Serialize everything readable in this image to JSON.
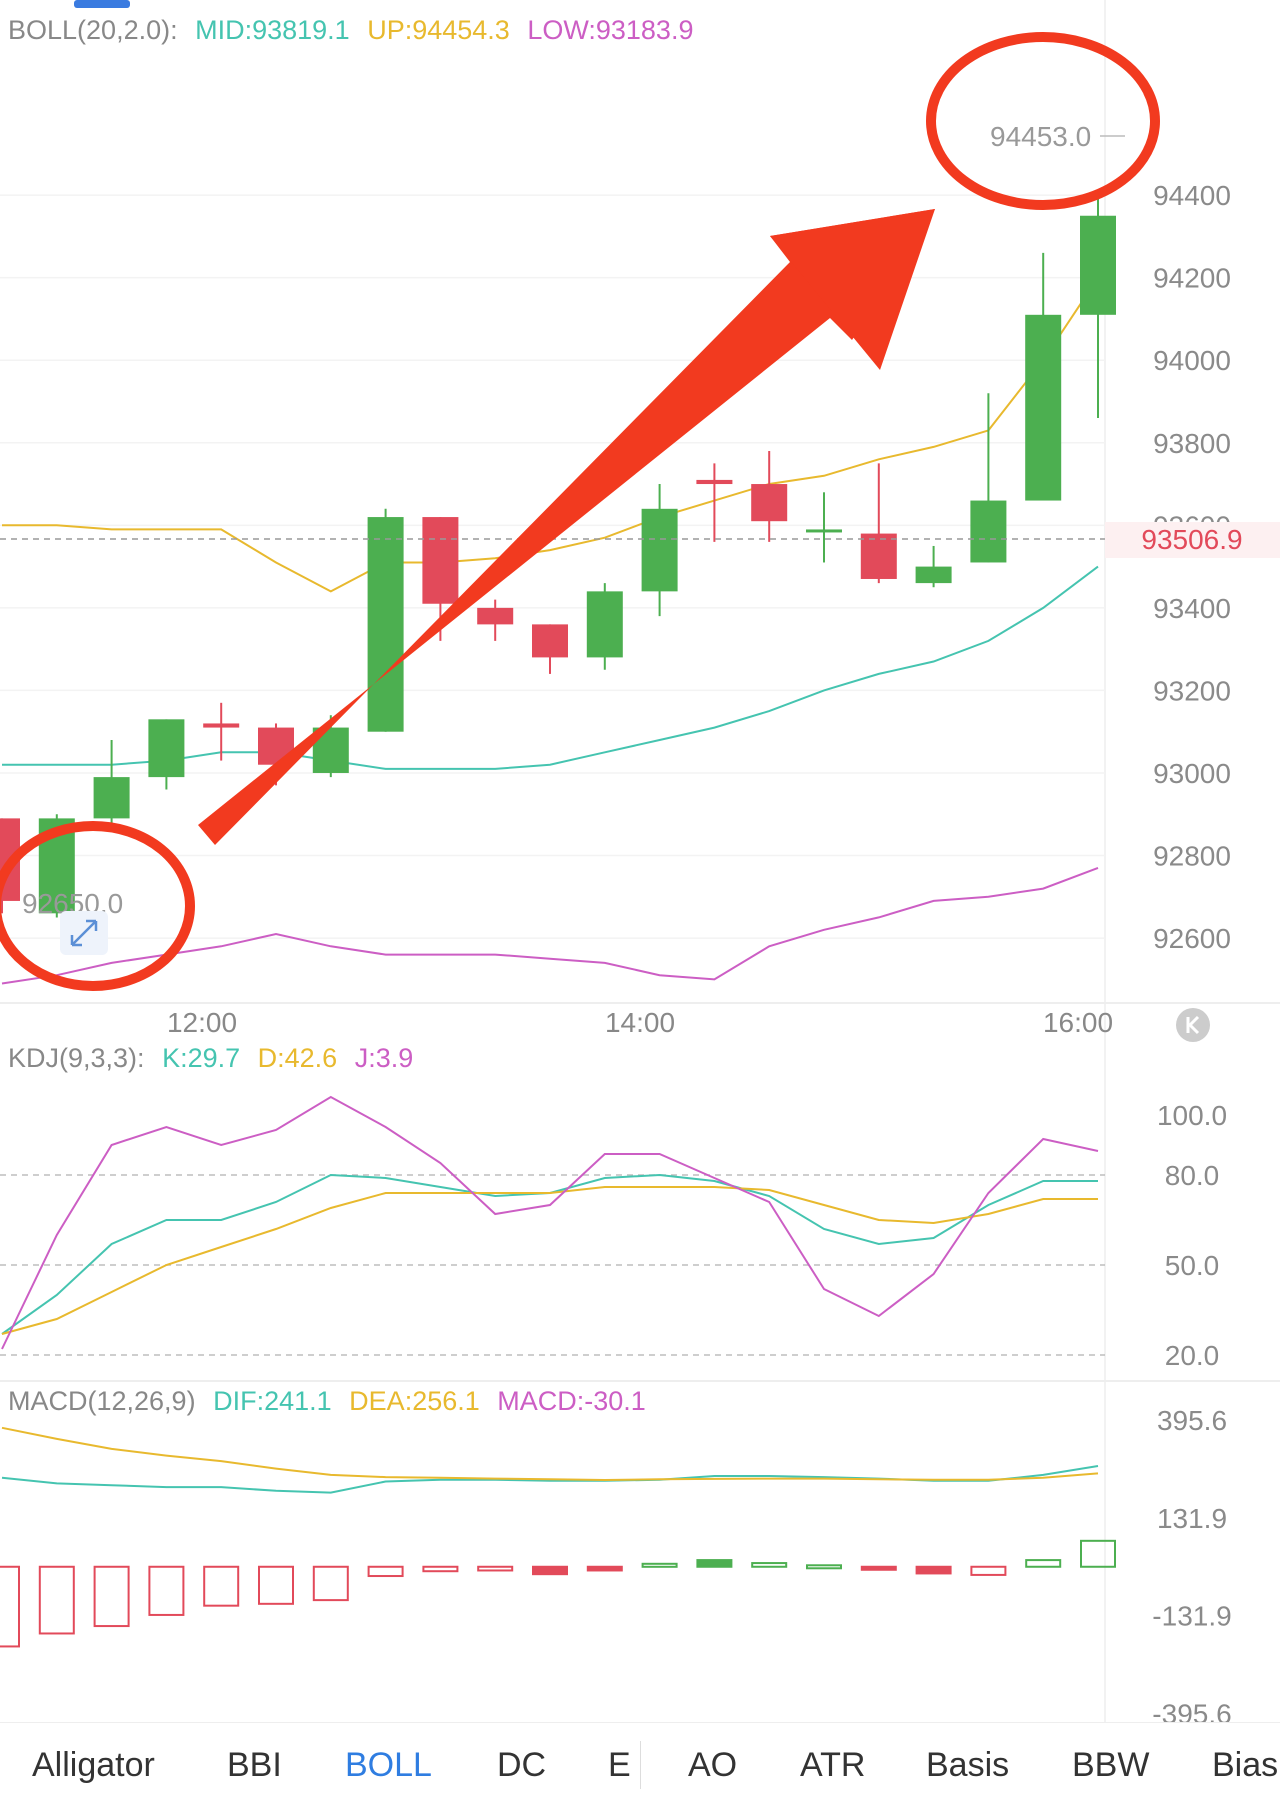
{
  "legends": {
    "boll": {
      "label": "BOLL(20,2.0):",
      "items": [
        {
          "text": "MID:93819.1",
          "color": "#45c4b0"
        },
        {
          "text": "UP:94454.3",
          "color": "#e8b92e"
        },
        {
          "text": "LOW:93183.9",
          "color": "#cc5ec4"
        }
      ]
    },
    "kdj": {
      "label": "KDJ(9,3,3):",
      "items": [
        {
          "text": "K:29.7",
          "color": "#45c4b0"
        },
        {
          "text": "D:42.6",
          "color": "#e8b92e"
        },
        {
          "text": "J:3.9",
          "color": "#cc5ec4"
        }
      ]
    },
    "macd": {
      "label": "MACD(12,26,9)",
      "items": [
        {
          "text": "DIF:241.1",
          "color": "#45c4b0"
        },
        {
          "text": "DEA:256.1",
          "color": "#e8b92e"
        },
        {
          "text": "MACD:-30.1",
          "color": "#cc5ec4"
        }
      ]
    }
  },
  "annotations": {
    "high_label": "94453.0",
    "low_label": "92650.0",
    "current_price": "93506.9"
  },
  "x_labels": [
    "12:00",
    "14:00",
    "16:00"
  ],
  "tabs": [
    {
      "label": "Alligator",
      "active": false
    },
    {
      "label": "BBI",
      "active": false
    },
    {
      "label": "BOLL",
      "active": true
    },
    {
      "label": "DC",
      "active": false
    },
    {
      "label": "E",
      "active": false
    },
    {
      "label": "AO",
      "active": false
    },
    {
      "label": "ATR",
      "active": false
    },
    {
      "label": "Basis",
      "active": false
    },
    {
      "label": "BBW",
      "active": false
    },
    {
      "label": "Bias",
      "active": false
    }
  ],
  "colors": {
    "up": "#4caf50",
    "down": "#e24a5a",
    "mid": "#45c4b0",
    "upper": "#e8b92e",
    "lower": "#cc5ec4",
    "arrow": "#f23a1f",
    "axis_text": "#8a8a8a",
    "price_tag": "#e24a5a"
  },
  "chart_data": [
    {
      "type": "candlestick",
      "title": "BOLL(20,2.0)",
      "x_ticks": [
        "12:00",
        "14:00",
        "16:00"
      ],
      "y_ticks": [
        92600,
        92800,
        93000,
        93200,
        93400,
        93600,
        93800,
        94000,
        94200,
        94400
      ],
      "ylim": [
        92450,
        94800
      ],
      "candles": [
        {
          "o": 92890,
          "h": 92890,
          "l": 92660,
          "c": 92690
        },
        {
          "o": 92660,
          "h": 92900,
          "l": 92650,
          "c": 92890
        },
        {
          "o": 92890,
          "h": 93080,
          "l": 92860,
          "c": 92990
        },
        {
          "o": 92990,
          "h": 93130,
          "l": 92960,
          "c": 93130
        },
        {
          "o": 93120,
          "h": 93170,
          "l": 93030,
          "c": 93110
        },
        {
          "o": 93110,
          "h": 93120,
          "l": 92970,
          "c": 93020
        },
        {
          "o": 93000,
          "h": 93140,
          "l": 92990,
          "c": 93110
        },
        {
          "o": 93100,
          "h": 93640,
          "l": 93100,
          "c": 93620
        },
        {
          "o": 93620,
          "h": 93620,
          "l": 93320,
          "c": 93410
        },
        {
          "o": 93400,
          "h": 93420,
          "l": 93320,
          "c": 93360
        },
        {
          "o": 93360,
          "h": 93360,
          "l": 93240,
          "c": 93280
        },
        {
          "o": 93280,
          "h": 93460,
          "l": 93250,
          "c": 93440
        },
        {
          "o": 93440,
          "h": 93700,
          "l": 93380,
          "c": 93640
        },
        {
          "o": 93710,
          "h": 93750,
          "l": 93560,
          "c": 93700
        },
        {
          "o": 93700,
          "h": 93780,
          "l": 93560,
          "c": 93610
        },
        {
          "o": 93590,
          "h": 93680,
          "l": 93510,
          "c": 93590
        },
        {
          "o": 93580,
          "h": 93750,
          "l": 93460,
          "c": 93470
        },
        {
          "o": 93460,
          "h": 93550,
          "l": 93450,
          "c": 93500
        },
        {
          "o": 93510,
          "h": 93920,
          "l": 93510,
          "c": 93660
        },
        {
          "o": 93660,
          "h": 94260,
          "l": 93660,
          "c": 94110
        },
        {
          "o": 94110,
          "h": 94400,
          "l": 93860,
          "c": 94350
        }
      ],
      "series": [
        {
          "name": "MID",
          "values": [
            93020,
            93020,
            93020,
            93030,
            93050,
            93050,
            93030,
            93010,
            93010,
            93010,
            93020,
            93050,
            93080,
            93110,
            93150,
            93200,
            93240,
            93270,
            93320,
            93400,
            93500
          ]
        },
        {
          "name": "UP",
          "values": [
            93600,
            93600,
            93590,
            93590,
            93590,
            93510,
            93440,
            93510,
            93510,
            93520,
            93540,
            93570,
            93620,
            93660,
            93700,
            93720,
            93760,
            93790,
            93830,
            94000,
            94200
          ]
        },
        {
          "name": "LOW",
          "values": [
            92490,
            92510,
            92540,
            92560,
            92580,
            92610,
            92580,
            92560,
            92560,
            92560,
            92550,
            92540,
            92510,
            92500,
            92580,
            92620,
            92650,
            92690,
            92700,
            92720,
            92770
          ]
        }
      ]
    },
    {
      "type": "line",
      "title": "KDJ(9,3,3)",
      "y_ticks": [
        100.0,
        80.0,
        50.0,
        20.0
      ],
      "ylim": [
        15,
        110
      ],
      "series": [
        {
          "name": "K",
          "values": [
            27,
            40,
            57,
            65,
            65,
            71,
            80,
            79,
            76,
            73,
            74,
            79,
            80,
            78,
            73,
            62,
            57,
            59,
            70,
            78,
            78
          ]
        },
        {
          "name": "D",
          "values": [
            27,
            32,
            41,
            50,
            56,
            62,
            69,
            74,
            74,
            74,
            74,
            76,
            76,
            76,
            75,
            70,
            65,
            64,
            67,
            72,
            72
          ]
        },
        {
          "name": "J",
          "values": [
            22,
            60,
            90,
            96,
            90,
            95,
            106,
            96,
            84,
            67,
            70,
            87,
            87,
            79,
            71,
            42,
            33,
            47,
            74,
            92,
            88
          ]
        }
      ]
    },
    {
      "type": "bar",
      "title": "MACD(12,26,9)",
      "y_ticks": [
        395.6,
        131.9,
        -131.9,
        -395.6
      ],
      "ylim": [
        -400,
        450
      ],
      "values": [
        -215,
        -180,
        -160,
        -130,
        -105,
        -100,
        -90,
        -25,
        -12,
        -10,
        -20,
        -10,
        8,
        18,
        10,
        4,
        -8,
        -18,
        -22,
        18,
        70
      ],
      "series": [
        {
          "name": "DIF",
          "values": [
            240,
            225,
            220,
            215,
            215,
            205,
            200,
            230,
            235,
            235,
            232,
            232,
            235,
            245,
            245,
            242,
            238,
            232,
            232,
            248,
            272
          ]
        },
        {
          "name": "DEA",
          "values": [
            375,
            345,
            318,
            300,
            285,
            265,
            248,
            242,
            240,
            238,
            236,
            234,
            236,
            237,
            238,
            238,
            236,
            235,
            235,
            240,
            252
          ]
        }
      ]
    }
  ]
}
